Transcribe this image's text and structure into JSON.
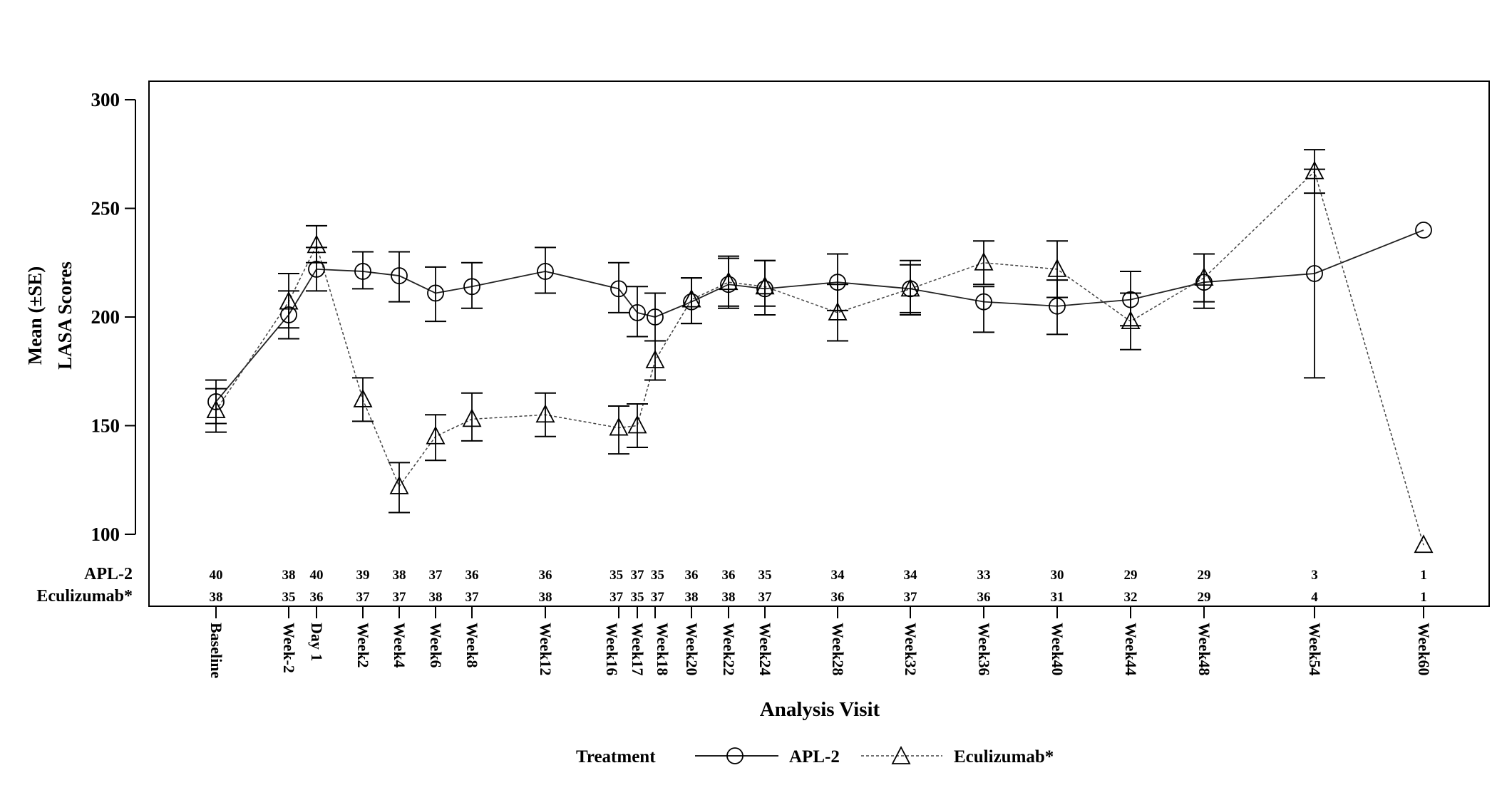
{
  "chart_data": {
    "type": "line",
    "xlabel": "Analysis Visit",
    "ylabel_lines": [
      "Mean (±SE)",
      "LASA Scores"
    ],
    "ylim": [
      100,
      300
    ],
    "yticks": [
      100,
      150,
      200,
      250,
      300
    ],
    "grid": false,
    "legend_placement": "bottom",
    "legend_title": "Treatment",
    "categories": [
      "Baseline",
      "Week-2",
      "Day 1",
      "Week2",
      "Week4",
      "Week6",
      "Week8",
      "Week12",
      "Week16",
      "Week17",
      "Week18",
      "Week20",
      "Week22",
      "Week24",
      "Week28",
      "Week32",
      "Week36",
      "Week40",
      "Week44",
      "Week48",
      "Week54",
      "Week60"
    ],
    "series": [
      {
        "name": "APL-2",
        "marker": "circle",
        "line": "solid",
        "values": [
          161,
          201,
          222,
          221,
          219,
          211,
          214,
          221,
          213,
          202,
          200,
          207,
          215,
          213,
          216,
          213,
          207,
          205,
          208,
          216,
          220,
          240
        ],
        "se_low": [
          151,
          190,
          212,
          213,
          207,
          198,
          204,
          211,
          202,
          191,
          189,
          197,
          204,
          201,
          203,
          201,
          193,
          192,
          196,
          204,
          172,
          null
        ],
        "se_high": [
          171,
          212,
          232,
          230,
          230,
          223,
          225,
          232,
          225,
          214,
          211,
          218,
          227,
          226,
          229,
          226,
          214,
          217,
          221,
          229,
          268,
          null
        ],
        "n": [
          "40",
          "38",
          "40",
          "39",
          "38",
          "37",
          "36",
          "36",
          "35",
          "37",
          "35",
          "36",
          "36",
          "35",
          "34",
          "34",
          "33",
          "30",
          "29",
          "29",
          "3",
          "1"
        ]
      },
      {
        "name": "Eculizumab*",
        "marker": "triangle",
        "line": "dashed",
        "values": [
          157,
          207,
          233,
          162,
          122,
          145,
          153,
          155,
          149,
          150,
          180,
          208,
          216,
          214,
          202,
          213,
          225,
          222,
          198,
          218,
          267,
          95
        ],
        "se_low": [
          147,
          195,
          225,
          152,
          110,
          134,
          143,
          145,
          137,
          140,
          171,
          197,
          205,
          205,
          189,
          202,
          215,
          209,
          185,
          207,
          257,
          null
        ],
        "se_high": [
          167,
          220,
          242,
          172,
          133,
          155,
          165,
          165,
          159,
          160,
          189,
          218,
          228,
          226,
          215,
          224,
          235,
          235,
          211,
          229,
          277,
          null
        ],
        "n": [
          "38",
          "35",
          "36",
          "37",
          "37",
          "38",
          "37",
          "38",
          "37",
          "35",
          "37",
          "38",
          "38",
          "37",
          "36",
          "37",
          "36",
          "31",
          "32",
          "29",
          "4",
          "1"
        ]
      }
    ],
    "n_row_labels": [
      "APL-2",
      "Eculizumab*"
    ]
  }
}
